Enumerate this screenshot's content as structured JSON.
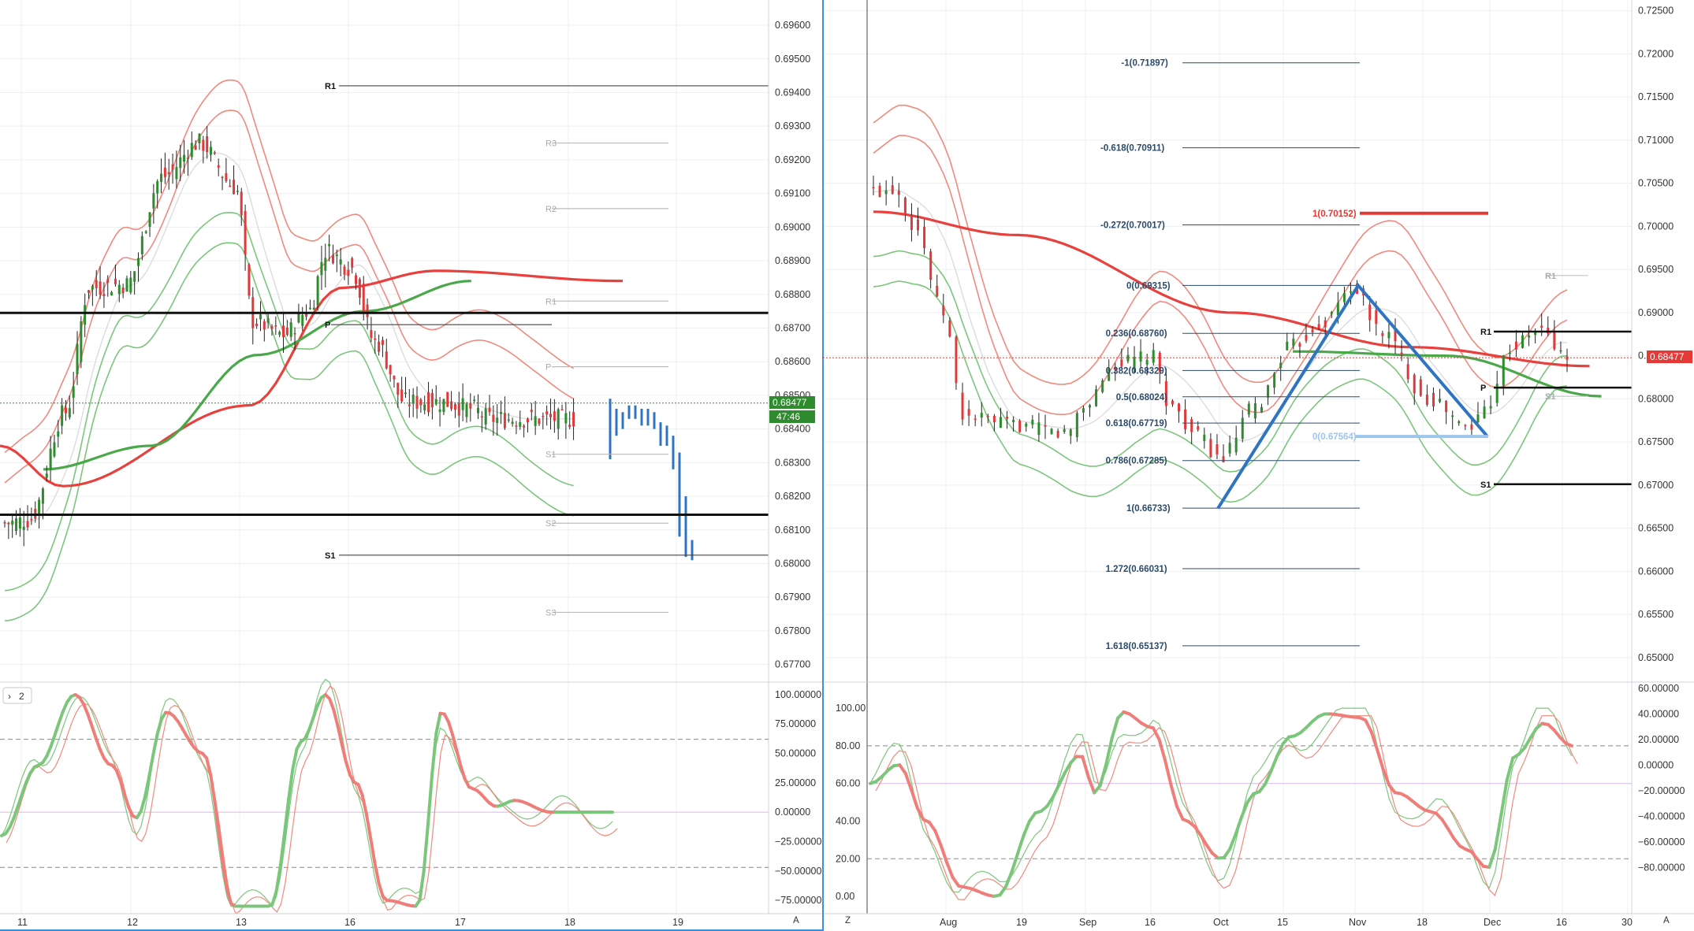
{
  "theme": {
    "bg": "#ffffff",
    "grid": "#eceff3",
    "up": "#2e8b2e",
    "down": "#e0393b",
    "blue": "#2f74c0",
    "lightblue": "#9ec5ec",
    "bb_red": "#ee8a7e",
    "bb_green": "#7cc67c",
    "ma_red": "#e8413d",
    "ma_green": "#4aa84a",
    "ma_gray": "#dcdcdc",
    "pane_border": "#3b8fe0",
    "price_tag_green": "#2e8b2e",
    "price_tag_red": "#e53935"
  },
  "left": {
    "price_ticks": [
      "0.69600",
      "0.69500",
      "0.69400",
      "0.69300",
      "0.69200",
      "0.69100",
      "0.69000",
      "0.68900",
      "0.68800",
      "0.68700",
      "0.68600",
      "0.68500",
      "0.68400",
      "0.68300",
      "0.68200",
      "0.68100",
      "0.68000",
      "0.67900",
      "0.67800",
      "0.67700"
    ],
    "price_range": [
      0.6765,
      0.69675
    ],
    "current_price": "0.68477",
    "countdown": "47:46",
    "date_ticks": [
      "11",
      "12",
      "13",
      "16",
      "17",
      "18",
      "19"
    ],
    "pivots": {
      "R1": {
        "label": "R1",
        "value": 0.6942
      },
      "R3": {
        "label": "R3",
        "value": 0.6925
      },
      "R2": {
        "label": "R2",
        "value": 0.69055
      },
      "R1b": {
        "label": "R1",
        "value": 0.6878
      },
      "P": {
        "label": "P",
        "value": 0.6871
      },
      "Pb": {
        "label": "P",
        "value": 0.68585
      },
      "S1a": {
        "label": "S1",
        "value": 0.68325
      },
      "S2": {
        "label": "S2",
        "value": 0.6812
      },
      "S1": {
        "label": "S1",
        "value": 0.68025
      },
      "S3": {
        "label": "S3",
        "value": 0.67855
      }
    },
    "hlines": [
      0.68745,
      0.68145
    ],
    "osc": {
      "badge": "2",
      "ticks": [
        "100.00000",
        "75.00000",
        "50.00000",
        "25.00000",
        "0.00000",
        "−25.00000",
        "−50.00000",
        "−75.00000"
      ],
      "range": [
        -85,
        108
      ],
      "upper": 62,
      "mid": 0,
      "lower": -47
    },
    "corner": "A"
  },
  "right": {
    "price_ticks": [
      "0.72500",
      "0.72000",
      "0.71500",
      "0.71000",
      "0.70500",
      "0.70000",
      "0.69500",
      "0.69000",
      "0.68500",
      "0.68000",
      "0.67500",
      "0.67000",
      "0.66500",
      "0.66000",
      "0.65500",
      "0.65000"
    ],
    "price_range": [
      0.64725,
      0.72625
    ],
    "current_price": "0.68477",
    "date_ticks": [
      "Aug",
      "19",
      "Sep",
      "16",
      "Oct",
      "15",
      "Nov",
      "18",
      "Dec",
      "16",
      "30"
    ],
    "fib": [
      {
        "label": "-1(0.71897)",
        "value": 0.71897
      },
      {
        "label": "-0.618(0.70911)",
        "value": 0.70911
      },
      {
        "label": "-0.272(0.70017)",
        "value": 0.70017
      },
      {
        "label": "0(0.69315)",
        "value": 0.69315
      },
      {
        "label": "0.236(0.68760)",
        "value": 0.6876
      },
      {
        "label": "0.382(0.68329)",
        "value": 0.68329
      },
      {
        "label": "0.5(0.68024)",
        "value": 0.68024
      },
      {
        "label": "0.618(0.67719)",
        "value": 0.67719
      },
      {
        "label": "0.786(0.67285)",
        "value": 0.67285
      },
      {
        "label": "1(0.66733)",
        "value": 0.66733
      },
      {
        "label": "1.272(0.66031)",
        "value": 0.66031
      },
      {
        "label": "1.618(0.65137)",
        "value": 0.65137
      }
    ],
    "target": {
      "label": "1(0.70152)",
      "value": 0.70152
    },
    "blue_zero": {
      "label": "0(0.67564)",
      "value": 0.67564
    },
    "pivots": {
      "R1": {
        "label": "R1",
        "value": 0.6878
      },
      "R1b": {
        "label": "R1",
        "value": 0.6943
      },
      "P": {
        "label": "P",
        "value": 0.6813
      },
      "S1": {
        "label": "S1",
        "value": 0.6701
      },
      "S1b": {
        "label": "S1",
        "value": 0.6803
      }
    },
    "osc": {
      "left_ticks": [
        "100.00",
        "80.00",
        "60.00",
        "40.00",
        "20.00",
        "0.00"
      ],
      "right_ticks": [
        "60.00000",
        "40.00000",
        "20.00000",
        "0.00000",
        "−20.00000",
        "−40.00000",
        "−60.00000",
        "−80.00000"
      ],
      "range": [
        -5,
        108
      ],
      "upper": 80,
      "mid": 60,
      "lower": 20
    },
    "corner_left": "Z",
    "corner_right": "A"
  }
}
